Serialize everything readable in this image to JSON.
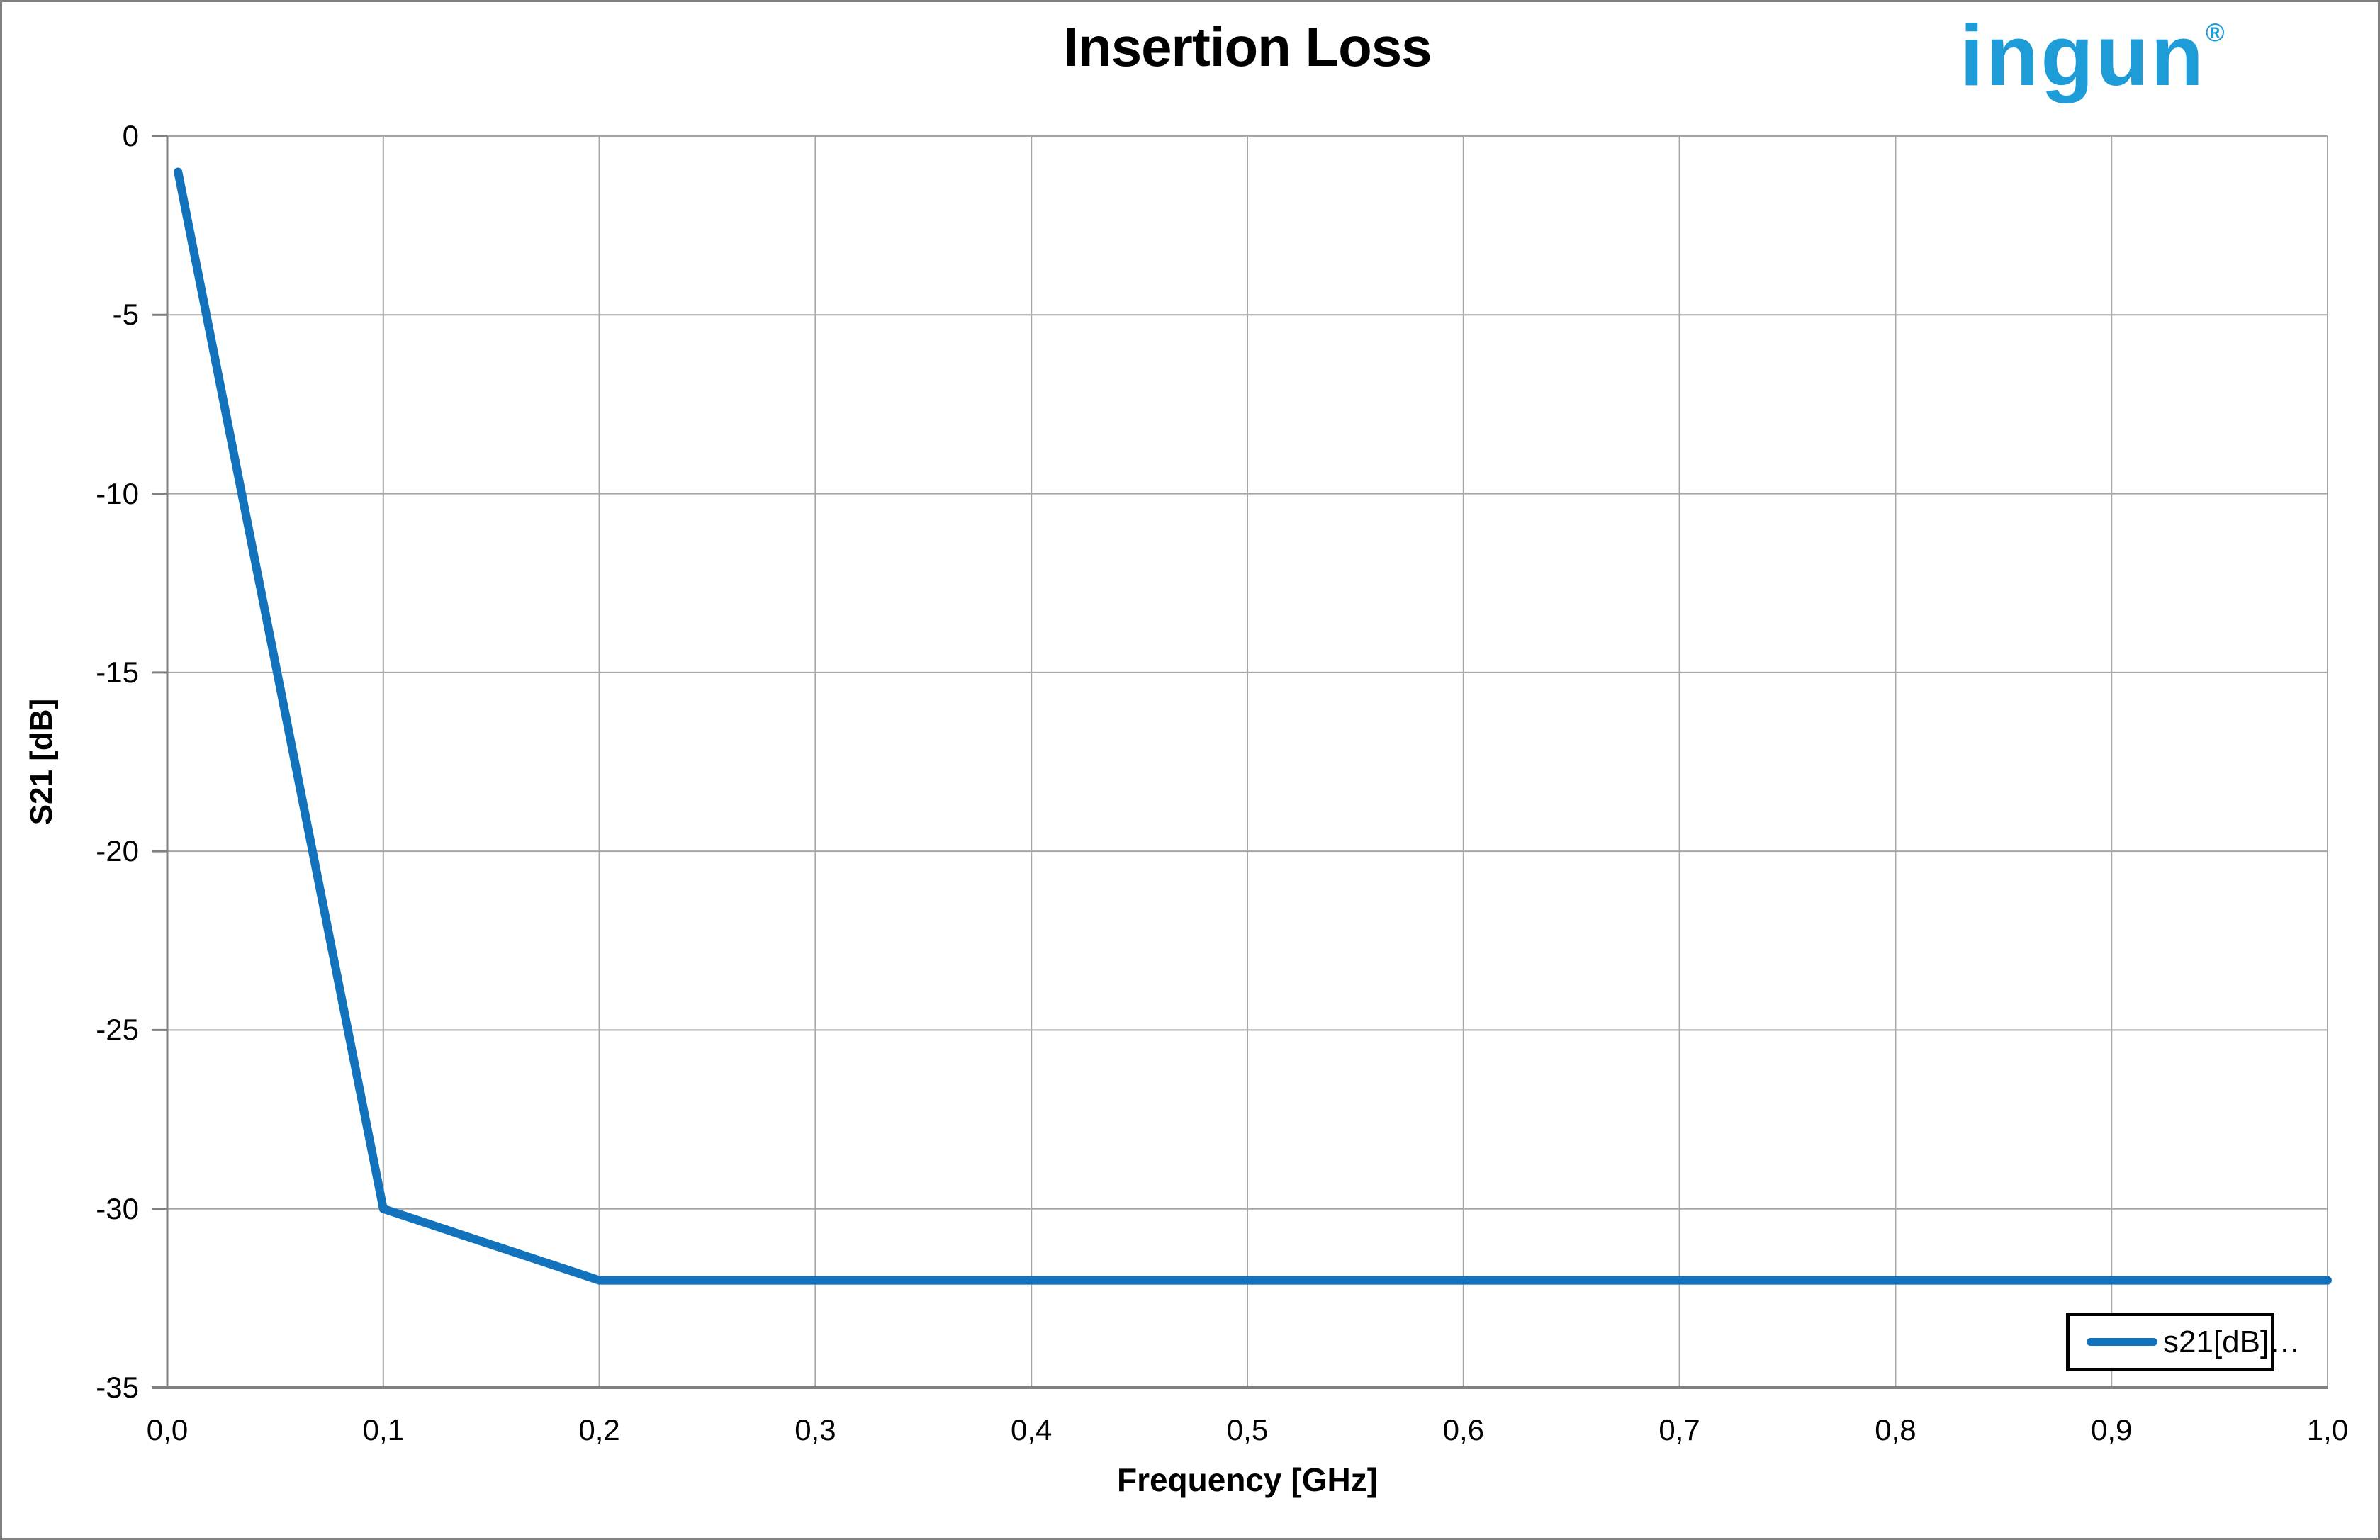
{
  "page": {
    "background": "#ffffff",
    "frame_color": "#7f7f7f"
  },
  "logo": {
    "text": "ingun",
    "registered_mark": "®",
    "color": "#1e9cd8"
  },
  "chart_data": {
    "type": "line",
    "title": "Insertion Loss",
    "xlabel": "Frequency [GHz]",
    "ylabel": "S21 [dB]",
    "xlim": [
      0.0,
      1.0
    ],
    "ylim": [
      -35,
      0
    ],
    "x_tick_values": [
      0.0,
      0.1,
      0.2,
      0.3,
      0.4,
      0.5,
      0.6,
      0.7,
      0.8,
      0.9,
      1.0
    ],
    "x_tick_labels": [
      "0,0",
      "0,1",
      "0,2",
      "0,3",
      "0,4",
      "0,5",
      "0,6",
      "0,7",
      "0,8",
      "0,9",
      "1,0"
    ],
    "y_tick_values": [
      0,
      -5,
      -10,
      -15,
      -20,
      -25,
      -30,
      -35
    ],
    "y_tick_labels": [
      "0",
      "-5",
      "-10",
      "-15",
      "-20",
      "-25",
      "-30",
      "-35"
    ],
    "grid": true,
    "gridline_color": "#a6a6a6",
    "axis_color": "#808080",
    "legend": {
      "label": "s21[dB]…",
      "position": "bottom-right"
    },
    "series": [
      {
        "name": "s21[dB]…",
        "color": "#1272bc",
        "points": [
          [
            0.005,
            -1.0
          ],
          [
            0.1,
            -30.0
          ],
          [
            0.2,
            -32.0
          ],
          [
            1.0,
            -32.0
          ]
        ]
      }
    ]
  }
}
